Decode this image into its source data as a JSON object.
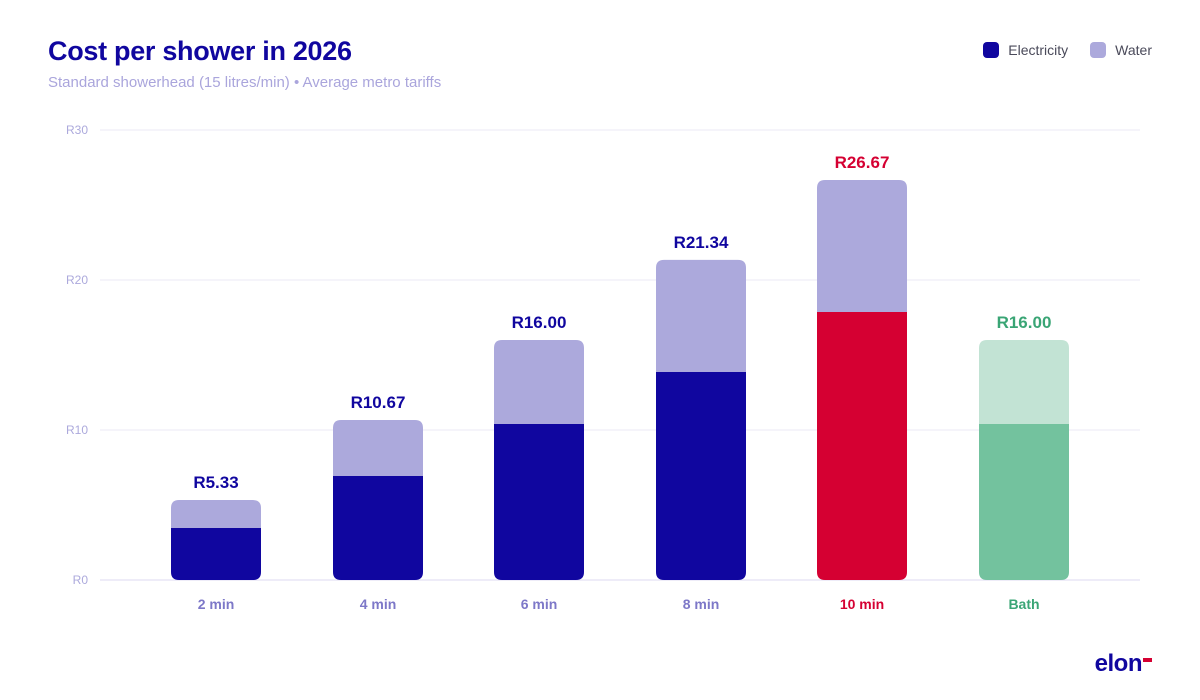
{
  "header": {
    "title": "Cost per shower in 2026",
    "subtitle": "Standard showerhead (15 litres/min) • Average metro tariffs"
  },
  "legend": [
    {
      "label": "Electricity",
      "color": "#10069f"
    },
    {
      "label": "Water",
      "color": "#aca9dc"
    }
  ],
  "brand": {
    "logo_text": "elon",
    "accent": "#d50032"
  },
  "colors": {
    "electricity": "#10069f",
    "water": "#aca9dc",
    "highlight_electricity": "#d50032",
    "bath_electricity": "#73c29e",
    "bath_water": "#c2e3d4",
    "bath_text": "#3aa575",
    "axis_text": "#aca9dc",
    "category_text": "#7d78c8",
    "grid": "#ebeaf5"
  },
  "chart_data": {
    "type": "bar",
    "stacked": true,
    "title": "Cost per shower in 2026",
    "subtitle": "Standard showerhead (15 litres/min) • Average metro tariffs",
    "xlabel": "",
    "ylabel": "",
    "ylim": [
      0,
      30
    ],
    "yticks": [
      0,
      10,
      20,
      30
    ],
    "ytick_labels": [
      "R0",
      "R10",
      "R20",
      "R30"
    ],
    "grid": true,
    "legend_position": "top-right",
    "categories": [
      "2 min",
      "4 min",
      "6 min",
      "8 min",
      "10 min",
      "Bath"
    ],
    "series": [
      {
        "name": "Electricity",
        "values": [
          3.47,
          6.93,
          10.4,
          13.87,
          17.87,
          10.4
        ]
      },
      {
        "name": "Water",
        "values": [
          1.86,
          3.74,
          5.6,
          7.47,
          8.8,
          5.6
        ]
      }
    ],
    "totals": [
      5.33,
      10.67,
      16.0,
      21.34,
      26.67,
      16.0
    ],
    "total_labels": [
      "R5.33",
      "R10.67",
      "R16.00",
      "R21.34",
      "R26.67",
      "R16.00"
    ],
    "highlight": {
      "10 min": "red",
      "Bath": "green"
    }
  }
}
